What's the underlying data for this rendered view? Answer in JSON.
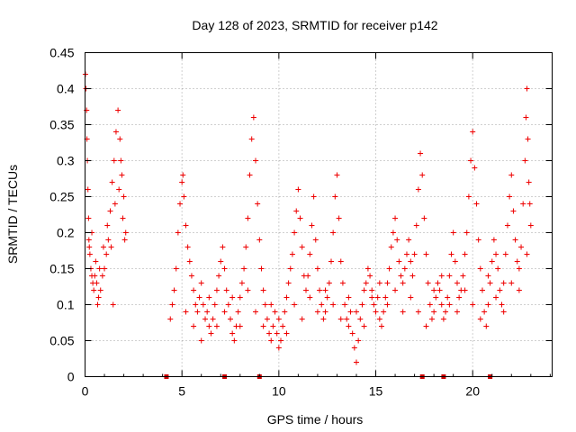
{
  "chart_data": {
    "type": "scatter",
    "title": "Day 128 of 2023, SRMTID for receiver p142",
    "xlabel": "GPS time / hours",
    "ylabel": "SRMTID / TECUs",
    "xlim": [
      0,
      24.1
    ],
    "ylim": [
      0,
      0.45
    ],
    "xticks": [
      0,
      5,
      10,
      15,
      20
    ],
    "xtick_labels": [
      "0",
      "5",
      "10",
      "15",
      "20"
    ],
    "yticks": [
      0,
      0.05,
      0.1,
      0.15,
      0.2,
      0.25,
      0.3,
      0.35,
      0.4,
      0.45
    ],
    "ytick_labels": [
      "0",
      "0.05",
      "0.1",
      "0.15",
      "0.2",
      "0.25",
      "0.3",
      "0.35",
      "0.4",
      "0.45"
    ],
    "grid": true,
    "marker": "+",
    "marker_color": "#ee0000",
    "gap_marker_color": "#cc0000",
    "series": [
      {
        "name": "SRMTID",
        "color": "#ee0000",
        "points": [
          [
            0.02,
            0.42
          ],
          [
            0.05,
            0.4
          ],
          [
            0.08,
            0.37
          ],
          [
            0.1,
            0.33
          ],
          [
            0.12,
            0.3
          ],
          [
            0.15,
            0.26
          ],
          [
            0.18,
            0.22
          ],
          [
            0.2,
            0.19
          ],
          [
            0.25,
            0.17
          ],
          [
            0.3,
            0.15
          ],
          [
            0.35,
            0.14
          ],
          [
            0.4,
            0.13
          ],
          [
            0.45,
            0.12
          ],
          [
            0.5,
            0.14
          ],
          [
            0.6,
            0.13
          ],
          [
            0.7,
            0.11
          ],
          [
            0.8,
            0.12
          ],
          [
            0.9,
            0.14
          ],
          [
            1.0,
            0.15
          ],
          [
            1.1,
            0.17
          ],
          [
            1.2,
            0.19
          ],
          [
            1.3,
            0.23
          ],
          [
            1.4,
            0.27
          ],
          [
            1.5,
            0.3
          ],
          [
            1.6,
            0.34
          ],
          [
            1.7,
            0.37
          ],
          [
            1.8,
            0.33
          ],
          [
            1.9,
            0.28
          ],
          [
            2.0,
            0.25
          ],
          [
            2.1,
            0.2
          ],
          [
            0.35,
            0.2
          ],
          [
            0.55,
            0.16
          ],
          [
            0.75,
            0.15
          ],
          [
            0.95,
            0.18
          ],
          [
            1.15,
            0.21
          ],
          [
            1.35,
            0.18
          ],
          [
            1.55,
            0.24
          ],
          [
            1.75,
            0.26
          ],
          [
            1.95,
            0.22
          ],
          [
            2.05,
            0.19
          ],
          [
            0.22,
            0.18
          ],
          [
            0.65,
            0.1
          ],
          [
            1.45,
            0.1
          ],
          [
            1.85,
            0.3
          ],
          [
            4.4,
            0.08
          ],
          [
            4.5,
            0.1
          ],
          [
            4.6,
            0.12
          ],
          [
            4.7,
            0.15
          ],
          [
            4.8,
            0.2
          ],
          [
            4.9,
            0.24
          ],
          [
            5.0,
            0.27
          ],
          [
            5.05,
            0.28
          ],
          [
            5.1,
            0.25
          ],
          [
            5.2,
            0.21
          ],
          [
            5.3,
            0.18
          ],
          [
            5.4,
            0.16
          ],
          [
            5.5,
            0.14
          ],
          [
            5.6,
            0.12
          ],
          [
            5.7,
            0.1
          ],
          [
            5.8,
            0.09
          ],
          [
            5.9,
            0.11
          ],
          [
            6.0,
            0.13
          ],
          [
            6.1,
            0.1
          ],
          [
            6.2,
            0.08
          ],
          [
            6.3,
            0.09
          ],
          [
            6.4,
            0.07
          ],
          [
            6.5,
            0.06
          ],
          [
            6.6,
            0.08
          ],
          [
            6.7,
            0.1
          ],
          [
            6.8,
            0.12
          ],
          [
            6.9,
            0.14
          ],
          [
            7.0,
            0.16
          ],
          [
            7.1,
            0.18
          ],
          [
            7.2,
            0.15
          ],
          [
            7.3,
            0.12
          ],
          [
            7.4,
            0.1
          ],
          [
            7.5,
            0.08
          ],
          [
            7.6,
            0.06
          ],
          [
            7.7,
            0.05
          ],
          [
            7.8,
            0.07
          ],
          [
            7.9,
            0.09
          ],
          [
            8.0,
            0.11
          ],
          [
            8.1,
            0.13
          ],
          [
            8.2,
            0.15
          ],
          [
            8.3,
            0.18
          ],
          [
            8.4,
            0.22
          ],
          [
            8.5,
            0.28
          ],
          [
            8.6,
            0.33
          ],
          [
            8.7,
            0.36
          ],
          [
            8.8,
            0.3
          ],
          [
            8.9,
            0.24
          ],
          [
            9.0,
            0.19
          ],
          [
            9.1,
            0.15
          ],
          [
            9.2,
            0.12
          ],
          [
            9.3,
            0.1
          ],
          [
            9.4,
            0.08
          ],
          [
            9.5,
            0.06
          ],
          [
            9.6,
            0.05
          ],
          [
            9.7,
            0.07
          ],
          [
            9.8,
            0.09
          ],
          [
            9.9,
            0.06
          ],
          [
            10.0,
            0.04
          ],
          [
            10.1,
            0.05
          ],
          [
            10.2,
            0.07
          ],
          [
            10.3,
            0.09
          ],
          [
            10.4,
            0.11
          ],
          [
            10.5,
            0.13
          ],
          [
            10.6,
            0.15
          ],
          [
            10.7,
            0.17
          ],
          [
            10.8,
            0.2
          ],
          [
            10.9,
            0.23
          ],
          [
            11.0,
            0.26
          ],
          [
            11.1,
            0.22
          ],
          [
            11.2,
            0.18
          ],
          [
            11.3,
            0.14
          ],
          [
            11.4,
            0.12
          ],
          [
            11.5,
            0.14
          ],
          [
            11.6,
            0.17
          ],
          [
            11.7,
            0.21
          ],
          [
            11.8,
            0.25
          ],
          [
            11.9,
            0.19
          ],
          [
            12.0,
            0.15
          ],
          [
            12.1,
            0.12
          ],
          [
            12.2,
            0.1
          ],
          [
            12.3,
            0.08
          ],
          [
            12.4,
            0.09
          ],
          [
            12.5,
            0.11
          ],
          [
            12.6,
            0.13
          ],
          [
            12.7,
            0.16
          ],
          [
            12.8,
            0.2
          ],
          [
            12.9,
            0.25
          ],
          [
            13.0,
            0.28
          ],
          [
            13.1,
            0.22
          ],
          [
            13.2,
            0.16
          ],
          [
            13.3,
            0.13
          ],
          [
            13.4,
            0.1
          ],
          [
            13.5,
            0.08
          ],
          [
            13.6,
            0.07
          ],
          [
            13.7,
            0.09
          ],
          [
            13.8,
            0.06
          ],
          [
            13.9,
            0.04
          ],
          [
            14.0,
            0.02
          ],
          [
            14.1,
            0.05
          ],
          [
            14.2,
            0.08
          ],
          [
            14.3,
            0.1
          ],
          [
            14.4,
            0.12
          ],
          [
            14.5,
            0.13
          ],
          [
            14.6,
            0.15
          ],
          [
            14.7,
            0.14
          ],
          [
            14.8,
            0.12
          ],
          [
            14.9,
            0.1
          ],
          [
            15.0,
            0.09
          ],
          [
            15.1,
            0.11
          ],
          [
            15.2,
            0.08
          ],
          [
            15.3,
            0.07
          ],
          [
            15.4,
            0.09
          ],
          [
            15.5,
            0.11
          ],
          [
            15.6,
            0.13
          ],
          [
            15.7,
            0.15
          ],
          [
            15.8,
            0.18
          ],
          [
            15.9,
            0.2
          ],
          [
            16.0,
            0.22
          ],
          [
            16.1,
            0.19
          ],
          [
            16.2,
            0.16
          ],
          [
            16.3,
            0.14
          ],
          [
            16.4,
            0.13
          ],
          [
            16.5,
            0.15
          ],
          [
            16.6,
            0.17
          ],
          [
            16.7,
            0.19
          ],
          [
            16.8,
            0.16
          ],
          [
            16.9,
            0.14
          ],
          [
            17.0,
            0.17
          ],
          [
            17.1,
            0.21
          ],
          [
            17.2,
            0.26
          ],
          [
            17.3,
            0.31
          ],
          [
            17.4,
            0.28
          ],
          [
            17.5,
            0.22
          ],
          [
            17.6,
            0.17
          ],
          [
            17.7,
            0.13
          ],
          [
            17.8,
            0.1
          ],
          [
            17.9,
            0.08
          ],
          [
            18.0,
            0.09
          ],
          [
            18.1,
            0.11
          ],
          [
            18.2,
            0.13
          ],
          [
            18.3,
            0.12
          ],
          [
            18.4,
            0.1
          ],
          [
            18.5,
            0.08
          ],
          [
            18.6,
            0.09
          ],
          [
            18.7,
            0.11
          ],
          [
            18.8,
            0.14
          ],
          [
            18.9,
            0.17
          ],
          [
            19.0,
            0.2
          ],
          [
            19.1,
            0.16
          ],
          [
            19.2,
            0.13
          ],
          [
            19.3,
            0.11
          ],
          [
            19.4,
            0.12
          ],
          [
            19.5,
            0.14
          ],
          [
            19.6,
            0.17
          ],
          [
            19.7,
            0.2
          ],
          [
            19.8,
            0.25
          ],
          [
            19.9,
            0.3
          ],
          [
            20.0,
            0.34
          ],
          [
            20.1,
            0.29
          ],
          [
            20.2,
            0.24
          ],
          [
            20.3,
            0.19
          ],
          [
            20.4,
            0.15
          ],
          [
            20.5,
            0.12
          ],
          [
            20.6,
            0.09
          ],
          [
            20.7,
            0.07
          ],
          [
            20.8,
            0.1
          ],
          [
            20.9,
            0.13
          ],
          [
            21.0,
            0.16
          ],
          [
            21.1,
            0.19
          ],
          [
            21.2,
            0.17
          ],
          [
            21.3,
            0.15
          ],
          [
            21.4,
            0.12
          ],
          [
            21.5,
            0.1
          ],
          [
            21.6,
            0.13
          ],
          [
            21.7,
            0.17
          ],
          [
            21.8,
            0.21
          ],
          [
            21.9,
            0.25
          ],
          [
            22.0,
            0.28
          ],
          [
            22.1,
            0.23
          ],
          [
            22.2,
            0.19
          ],
          [
            22.3,
            0.16
          ],
          [
            22.4,
            0.15
          ],
          [
            22.5,
            0.18
          ],
          [
            22.6,
            0.24
          ],
          [
            22.7,
            0.3
          ],
          [
            22.75,
            0.36
          ],
          [
            22.8,
            0.4
          ],
          [
            22.85,
            0.33
          ],
          [
            22.9,
            0.27
          ],
          [
            22.95,
            0.24
          ],
          [
            23.0,
            0.21
          ],
          [
            5.2,
            0.09
          ],
          [
            5.6,
            0.07
          ],
          [
            6.0,
            0.05
          ],
          [
            6.4,
            0.11
          ],
          [
            6.8,
            0.07
          ],
          [
            7.2,
            0.09
          ],
          [
            7.6,
            0.11
          ],
          [
            8.0,
            0.07
          ],
          [
            8.4,
            0.12
          ],
          [
            8.8,
            0.09
          ],
          [
            9.2,
            0.07
          ],
          [
            9.6,
            0.1
          ],
          [
            10.0,
            0.08
          ],
          [
            10.4,
            0.06
          ],
          [
            10.8,
            0.1
          ],
          [
            11.2,
            0.08
          ],
          [
            11.6,
            0.11
          ],
          [
            12.0,
            0.09
          ],
          [
            12.4,
            0.12
          ],
          [
            12.8,
            0.1
          ],
          [
            13.2,
            0.08
          ],
          [
            13.6,
            0.11
          ],
          [
            14.0,
            0.09
          ],
          [
            14.4,
            0.07
          ],
          [
            14.8,
            0.11
          ],
          [
            15.2,
            0.13
          ],
          [
            15.6,
            0.1
          ],
          [
            16.0,
            0.12
          ],
          [
            16.4,
            0.09
          ],
          [
            16.8,
            0.11
          ],
          [
            17.2,
            0.09
          ],
          [
            17.6,
            0.07
          ],
          [
            18.0,
            0.12
          ],
          [
            18.4,
            0.14
          ],
          [
            18.8,
            0.1
          ],
          [
            19.2,
            0.09
          ],
          [
            19.6,
            0.12
          ],
          [
            20.0,
            0.1
          ],
          [
            20.4,
            0.08
          ],
          [
            20.8,
            0.14
          ],
          [
            21.2,
            0.11
          ],
          [
            21.6,
            0.09
          ],
          [
            22.0,
            0.13
          ],
          [
            22.4,
            0.12
          ],
          [
            22.8,
            0.17
          ]
        ]
      }
    ],
    "gap_markers_x": [
      4.2,
      7.2,
      9.0,
      17.4,
      18.5,
      20.9
    ]
  }
}
